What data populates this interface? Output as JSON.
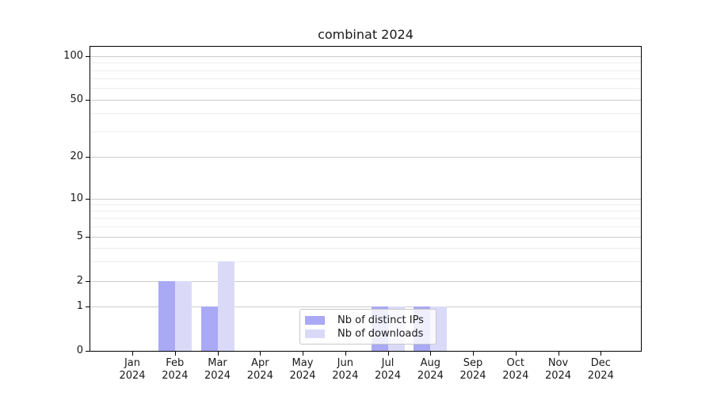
{
  "chart_data": {
    "type": "bar",
    "title": "combinat 2024",
    "categories": [
      "Jan 2024",
      "Feb 2024",
      "Mar 2024",
      "Apr 2024",
      "May 2024",
      "Jun 2024",
      "Jul 2024",
      "Aug 2024",
      "Sep 2024",
      "Oct 2024",
      "Nov 2024",
      "Dec 2024"
    ],
    "series": [
      {
        "name": "Nb of distinct IPs",
        "color": "#a9a9f5",
        "values": [
          0,
          2,
          1,
          0,
          0,
          0,
          1,
          1,
          0,
          0,
          0,
          0
        ]
      },
      {
        "name": "Nb of downloads",
        "color": "#dadaf8",
        "values": [
          0,
          2,
          3,
          0,
          0,
          0,
          1,
          1,
          0,
          0,
          0,
          0
        ]
      }
    ],
    "yticks": [
      0,
      1,
      2,
      5,
      10,
      20,
      50,
      100
    ],
    "minor_yticks": [
      3,
      4,
      6,
      7,
      8,
      9,
      30,
      40,
      60,
      70,
      80,
      90
    ],
    "yscale": "linear from 0 to 1, logarithmic above 1",
    "ylim": [
      0,
      115
    ],
    "xlabel": "",
    "ylabel": "",
    "grid": "on",
    "legend_position": "lower center"
  },
  "colors": {
    "bar_distinct_ips": "#a9a9f5",
    "bar_downloads": "#dadaf8",
    "grid_major": "#cccccc",
    "grid_minor": "#ededed",
    "axis": "#000000",
    "text": "#1a1a1a",
    "legend_border": "#c8c8c8",
    "background": "#ffffff"
  }
}
